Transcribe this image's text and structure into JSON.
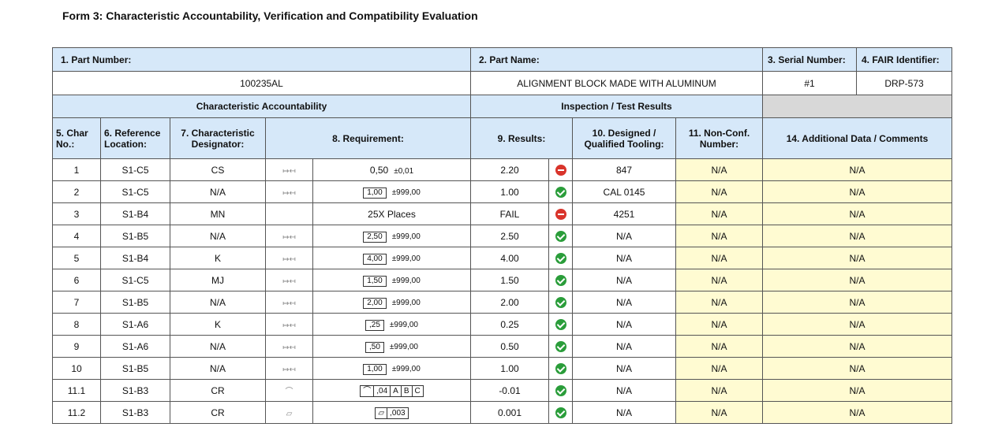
{
  "form": {
    "title": "Form 3: Characteristic Accountability, Verification and Compatibility Evaluation"
  },
  "header": {
    "part_number_label": "1. Part Number:",
    "part_name_label": "2. Part Name:",
    "serial_number_label": "3. Serial Number:",
    "fair_identifier_label": "4. FAIR Identifier:",
    "part_number": "100235AL",
    "part_name": "ALIGNMENT BLOCK MADE WITH ALUMINUM",
    "serial_number": "#1",
    "fair_identifier": "DRP-573"
  },
  "sections": {
    "accountability": "Characteristic Accountability",
    "inspection": "Inspection / Test Results"
  },
  "columns": {
    "char_no": "5. Char No.:",
    "reference_location": "6. Reference Location:",
    "designator": "7. Characteristic Designator:",
    "requirement": "8. Requirement:",
    "results": "9. Results:",
    "tooling": "10. Designed / Qualified Tooling:",
    "nonconf": "11. Non-Conf. Number:",
    "comments": "14. Additional Data / Comments"
  },
  "rows": [
    {
      "no": "1",
      "loc": "S1-C5",
      "des": "CS",
      "sym": "dim",
      "req_box": "",
      "req_plain": "0,50",
      "req_tol": "±0,01",
      "result": "2.20",
      "status": "fail",
      "tooling": "847",
      "nonconf": "N/A",
      "comments": "N/A"
    },
    {
      "no": "2",
      "loc": "S1-C5",
      "des": "N/A",
      "sym": "dim",
      "req_box": "1,00",
      "req_plain": "",
      "req_tol": "±999,00",
      "result": "1.00",
      "status": "pass",
      "tooling": "CAL 0145",
      "nonconf": "N/A",
      "comments": "N/A"
    },
    {
      "no": "3",
      "loc": "S1-B4",
      "des": "MN",
      "sym": "",
      "req_box": "",
      "req_plain": "25X  Places",
      "req_tol": "",
      "result": "FAIL",
      "status": "fail",
      "tooling": "4251",
      "nonconf": "N/A",
      "comments": "N/A"
    },
    {
      "no": "4",
      "loc": "S1-B5",
      "des": "N/A",
      "sym": "dim",
      "req_box": "2,50",
      "req_plain": "",
      "req_tol": "±999,00",
      "result": "2.50",
      "status": "pass",
      "tooling": "N/A",
      "nonconf": "N/A",
      "comments": "N/A"
    },
    {
      "no": "5",
      "loc": "S1-B4",
      "des": "K",
      "sym": "dim",
      "req_box": "4,00",
      "req_plain": "",
      "req_tol": "±999,00",
      "result": "4.00",
      "status": "pass",
      "tooling": "N/A",
      "nonconf": "N/A",
      "comments": "N/A"
    },
    {
      "no": "6",
      "loc": "S1-C5",
      "des": "MJ",
      "sym": "dim",
      "req_box": "1,50",
      "req_plain": "",
      "req_tol": "±999,00",
      "result": "1.50",
      "status": "pass",
      "tooling": "N/A",
      "nonconf": "N/A",
      "comments": "N/A"
    },
    {
      "no": "7",
      "loc": "S1-B5",
      "des": "N/A",
      "sym": "dim",
      "req_box": "2,00",
      "req_plain": "",
      "req_tol": "±999,00",
      "result": "2.00",
      "status": "pass",
      "tooling": "N/A",
      "nonconf": "N/A",
      "comments": "N/A"
    },
    {
      "no": "8",
      "loc": "S1-A6",
      "des": "K",
      "sym": "dim",
      "req_box": ",25",
      "req_plain": "",
      "req_tol": "±999,00",
      "result": "0.25",
      "status": "pass",
      "tooling": "N/A",
      "nonconf": "N/A",
      "comments": "N/A"
    },
    {
      "no": "9",
      "loc": "S1-A6",
      "des": "N/A",
      "sym": "dim",
      "req_box": ",50",
      "req_plain": "",
      "req_tol": "±999,00",
      "result": "0.50",
      "status": "pass",
      "tooling": "N/A",
      "nonconf": "N/A",
      "comments": "N/A"
    },
    {
      "no": "10",
      "loc": "S1-B5",
      "des": "N/A",
      "sym": "dim",
      "req_box": "1,00",
      "req_plain": "",
      "req_tol": "±999,00",
      "result": "1.00",
      "status": "pass",
      "tooling": "N/A",
      "nonconf": "N/A",
      "comments": "N/A"
    },
    {
      "no": "11.1",
      "loc": "S1-B3",
      "des": "CR",
      "sym": "profile",
      "fcf": [
        ",04",
        "A",
        "B",
        "C"
      ],
      "result": "-0.01",
      "status": "pass",
      "tooling": "N/A",
      "nonconf": "N/A",
      "comments": "N/A"
    },
    {
      "no": "11.2",
      "loc": "S1-B3",
      "des": "CR",
      "sym": "flatness",
      "fcf": [
        ",003"
      ],
      "result": "0.001",
      "status": "pass",
      "tooling": "N/A",
      "nonconf": "N/A",
      "comments": "N/A"
    }
  ],
  "colors": {
    "header_blue": "#d6e8f9",
    "pass_green": "#d3f0d3",
    "fail_red": "#f9d6d6",
    "comment_yellow": "#fffbd2",
    "section_grey": "#d8d8d8"
  },
  "icons": {
    "pass": "check-circle-icon",
    "fail": "minus-circle-icon",
    "dimension": "dimension-arrow-icon",
    "profile": "profile-of-surface-icon",
    "flatness": "flatness-icon"
  }
}
